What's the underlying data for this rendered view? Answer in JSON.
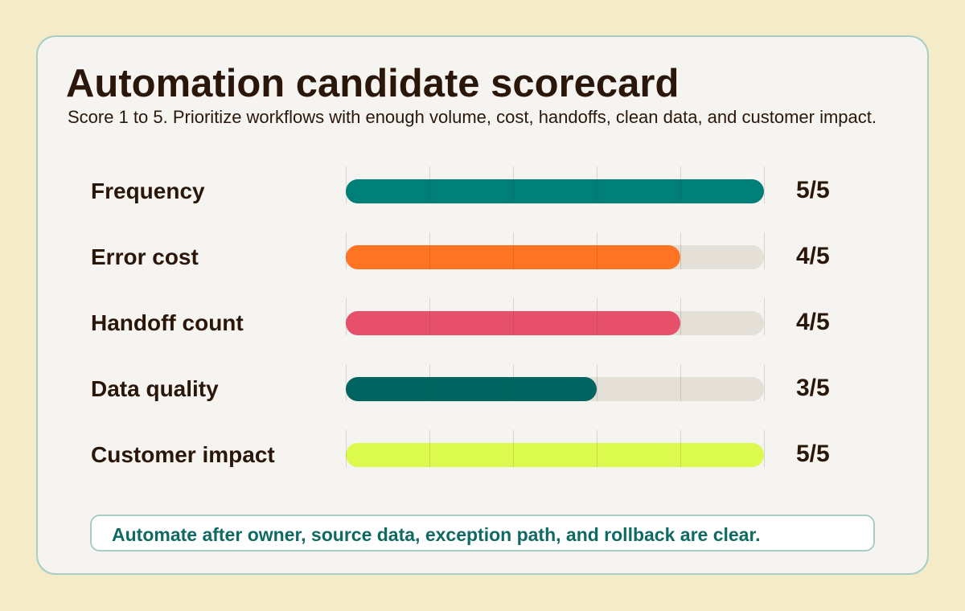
{
  "scorecard": {
    "title": "Automation candidate scorecard",
    "subtitle": "Score 1 to 5. Prioritize workflows with enough volume, cost, handoffs, clean data, and customer impact.",
    "scale_max": 5,
    "rows": [
      {
        "label": "Frequency",
        "score": 5,
        "score_text": "5/5",
        "color": "#007e78"
      },
      {
        "label": "Error cost",
        "score": 4,
        "score_text": "4/5",
        "color": "#ff7422"
      },
      {
        "label": "Handoff count",
        "score": 4,
        "score_text": "4/5",
        "color": "#e6506a"
      },
      {
        "label": "Data quality",
        "score": 3,
        "score_text": "3/5",
        "color": "#006460"
      },
      {
        "label": "Customer impact",
        "score": 5,
        "score_text": "5/5",
        "color": "#dcfa4e"
      }
    ],
    "note": "Automate after owner, source data, exception path, and rollback are clear."
  },
  "colors": {
    "background": "#f4ecc8",
    "card": "#f5f4f0",
    "border": "#a8cdc4",
    "track": "#e4e0d8",
    "text": "#2a170a",
    "note_text": "#0f6a63"
  }
}
